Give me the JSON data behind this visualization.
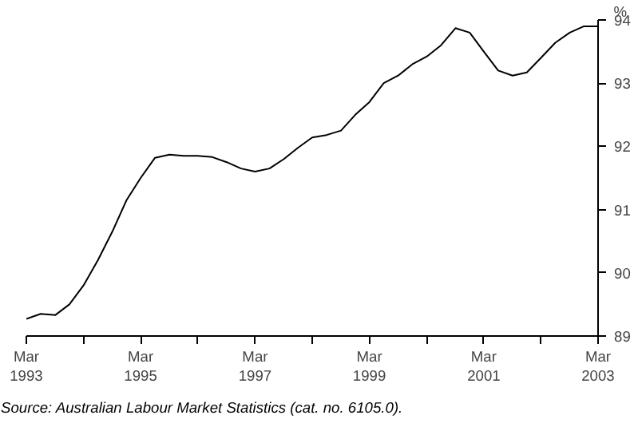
{
  "chart_data": {
    "type": "line",
    "ylabel": "%",
    "x": [
      "1993-03",
      "1993-06",
      "1993-09",
      "1993-12",
      "1994-03",
      "1994-06",
      "1994-09",
      "1994-12",
      "1995-03",
      "1995-06",
      "1995-09",
      "1995-12",
      "1996-03",
      "1996-06",
      "1996-09",
      "1996-12",
      "1997-03",
      "1997-06",
      "1997-09",
      "1997-12",
      "1998-03",
      "1998-06",
      "1998-09",
      "1998-12",
      "1999-03",
      "1999-06",
      "1999-09",
      "1999-12",
      "2000-03",
      "2000-06",
      "2000-09",
      "2000-12",
      "2001-03",
      "2001-06",
      "2001-09",
      "2001-12",
      "2002-03",
      "2002-06",
      "2002-09",
      "2002-12",
      "2003-03"
    ],
    "series": [
      {
        "color": "#000000",
        "values": [
          89.27,
          89.35,
          89.33,
          89.5,
          89.8,
          90.2,
          90.65,
          91.15,
          91.5,
          91.82,
          91.87,
          91.85,
          91.85,
          91.83,
          91.75,
          91.65,
          91.6,
          91.65,
          91.8,
          91.98,
          92.14,
          92.18,
          92.25,
          92.5,
          92.7,
          93.0,
          93.12,
          93.3,
          93.42,
          93.6,
          93.87,
          93.8,
          93.5,
          93.2,
          93.12,
          93.17,
          93.4,
          93.64,
          93.8,
          93.9,
          93.9
        ]
      }
    ],
    "xlim": [
      "1993-03",
      "2003-03"
    ],
    "xticks": [
      {
        "value": "1993-03",
        "label": "Mar\n1993"
      },
      {
        "value": "1994-03",
        "label": null
      },
      {
        "value": "1995-03",
        "label": "Mar\n1995"
      },
      {
        "value": "1996-03",
        "label": null
      },
      {
        "value": "1997-03",
        "label": "Mar\n1997"
      },
      {
        "value": "1998-03",
        "label": null
      },
      {
        "value": "1999-03",
        "label": "Mar\n1999"
      },
      {
        "value": "2000-03",
        "label": null
      },
      {
        "value": "2001-03",
        "label": "Mar\n2001"
      },
      {
        "value": "2002-03",
        "label": null
      },
      {
        "value": "2003-03",
        "label": "Mar\n2003"
      }
    ],
    "ylim": [
      89,
      94
    ],
    "yticks": [
      89,
      90,
      91,
      92,
      93,
      94
    ],
    "grid": false,
    "marker": "none",
    "line_style": "solid",
    "annotations": [
      "Source: Australian Labour Market Statistics (cat. no. 6105.0)."
    ]
  }
}
